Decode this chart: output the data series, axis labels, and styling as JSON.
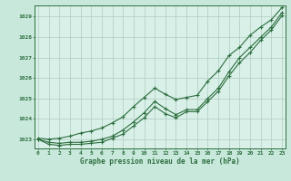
{
  "title": "Graphe pression niveau de la mer (hPa)",
  "background_color": "#c8e8dc",
  "plot_bg_color": "#d8f0e8",
  "grid_color": "#b0ccc0",
  "line_color": "#2d6e3e",
  "hours": [
    0,
    1,
    2,
    3,
    4,
    5,
    6,
    7,
    8,
    9,
    10,
    11,
    12,
    13,
    14,
    15,
    16,
    17,
    18,
    19,
    20,
    21,
    22,
    23
  ],
  "pressure_main": [
    1023.0,
    1022.85,
    1022.8,
    1022.85,
    1022.85,
    1022.9,
    1023.0,
    1023.15,
    1023.45,
    1023.85,
    1024.3,
    1024.85,
    1024.5,
    1024.2,
    1024.45,
    1024.45,
    1025.0,
    1025.5,
    1026.3,
    1027.0,
    1027.5,
    1028.0,
    1028.5,
    1029.2
  ],
  "pressure_high": [
    1023.05,
    1023.0,
    1023.05,
    1023.15,
    1023.3,
    1023.4,
    1023.55,
    1023.8,
    1024.1,
    1024.6,
    1025.05,
    1025.5,
    1025.2,
    1024.95,
    1025.05,
    1025.15,
    1025.85,
    1026.35,
    1027.1,
    1027.5,
    1028.1,
    1028.5,
    1028.85,
    1029.45
  ],
  "pressure_low": [
    1023.0,
    1022.75,
    1022.7,
    1022.75,
    1022.75,
    1022.8,
    1022.85,
    1023.05,
    1023.25,
    1023.65,
    1024.05,
    1024.6,
    1024.25,
    1024.05,
    1024.35,
    1024.35,
    1024.85,
    1025.35,
    1026.1,
    1026.75,
    1027.25,
    1027.85,
    1028.35,
    1029.05
  ],
  "ylim_min": 1022.55,
  "ylim_max": 1029.55,
  "yticks": [
    1023,
    1024,
    1025,
    1026,
    1027,
    1028,
    1029
  ],
  "xticks": [
    0,
    1,
    2,
    3,
    4,
    5,
    6,
    7,
    8,
    9,
    10,
    11,
    12,
    13,
    14,
    15,
    16,
    17,
    18,
    19,
    20,
    21,
    22,
    23
  ]
}
